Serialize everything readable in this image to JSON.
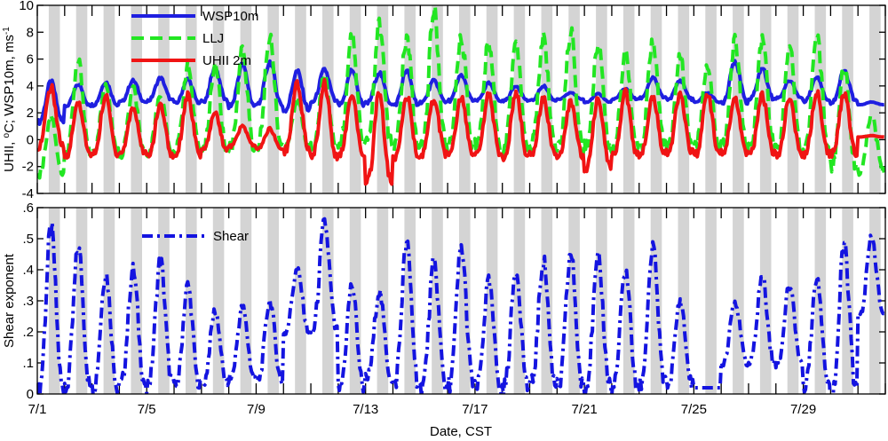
{
  "figure": {
    "xlabel": "Date, CST"
  },
  "chart_data": [
    {
      "type": "line",
      "panel": "top",
      "ylabel_parts": [
        "UHII, ",
        "o",
        "C; WSP10m, ms",
        "-1"
      ],
      "ylim": [
        -4,
        10
      ],
      "yticks": [
        -4,
        -2,
        0,
        2,
        4,
        6,
        8,
        10
      ],
      "ytick_labels": [
        "-4",
        "-2",
        "0",
        "2",
        "4",
        "6",
        "8",
        "10"
      ],
      "xlim_days": [
        0,
        31
      ],
      "legend_position": "top-left",
      "series": [
        {
          "name": "WSP10m",
          "color": "#1f1fe0",
          "style": "solid",
          "width": 4,
          "daily": [
            [
              0.3,
              1.3,
              4.3
            ],
            [
              1.3,
              2.5,
              4.1
            ],
            [
              2.3,
              2.6,
              4.3
            ],
            [
              3.3,
              2.8,
              4.4
            ],
            [
              4.3,
              2.9,
              4.6
            ],
            [
              5.3,
              2.7,
              4.5
            ],
            [
              6.3,
              2.8,
              5.3
            ],
            [
              7.3,
              2.5,
              5.6
            ],
            [
              8.3,
              2.6,
              5.8
            ],
            [
              9.3,
              2.2,
              5.1
            ],
            [
              10.3,
              2.8,
              5.2
            ],
            [
              11.3,
              2.6,
              5.2
            ],
            [
              12.3,
              2.7,
              5.0
            ],
            [
              13.3,
              2.6,
              5.1
            ],
            [
              14.3,
              2.8,
              4.4
            ],
            [
              15.3,
              2.9,
              4.8
            ],
            [
              16.3,
              2.9,
              4.2
            ],
            [
              17.3,
              2.9,
              4.0
            ],
            [
              18.3,
              2.9,
              4.0
            ],
            [
              19.3,
              3.0,
              3.5
            ],
            [
              20.3,
              2.8,
              3.4
            ],
            [
              21.3,
              3.0,
              3.8
            ],
            [
              22.3,
              3.1,
              4.6
            ],
            [
              23.3,
              3.0,
              4.4
            ],
            [
              24.3,
              2.8,
              3.5
            ],
            [
              25.3,
              2.8,
              5.9
            ],
            [
              26.3,
              3.0,
              5.3
            ],
            [
              27.3,
              3.1,
              4.4
            ],
            [
              28.3,
              2.9,
              4.7
            ],
            [
              29.3,
              2.8,
              5.1
            ],
            [
              30.3,
              2.6,
              2.8
            ]
          ]
        },
        {
          "name": "LLJ",
          "color": "#22e622",
          "style": "dashed",
          "width": 4,
          "daily": [
            [
              0.3,
              -2.6,
              1.8
            ],
            [
              1.3,
              -1.0,
              5.8
            ],
            [
              2.3,
              -0.9,
              4.0
            ],
            [
              3.3,
              -1.2,
              3.8
            ],
            [
              4.3,
              -1.0,
              3.4
            ],
            [
              5.3,
              -0.8,
              5.5
            ],
            [
              6.3,
              -0.9,
              5.6
            ],
            [
              7.3,
              -0.7,
              6.6
            ],
            [
              8.3,
              -0.5,
              7.7
            ],
            [
              9.3,
              -0.6,
              3.0
            ],
            [
              10.3,
              -0.5,
              4.8
            ],
            [
              11.3,
              -0.4,
              7.6
            ],
            [
              12.3,
              -0.3,
              8.5
            ],
            [
              13.3,
              -0.5,
              7.5
            ],
            [
              14.3,
              -0.6,
              9.6
            ],
            [
              15.3,
              -0.5,
              7.5
            ],
            [
              16.3,
              -0.4,
              7.2
            ],
            [
              17.3,
              -0.6,
              7.3
            ],
            [
              18.3,
              -0.5,
              7.5
            ],
            [
              19.3,
              -0.6,
              8.0
            ],
            [
              20.3,
              -0.5,
              7.2
            ],
            [
              21.3,
              -0.5,
              6.5
            ],
            [
              22.3,
              -0.6,
              7.4
            ],
            [
              23.3,
              -0.7,
              6.2
            ],
            [
              24.3,
              -0.5,
              5.5
            ],
            [
              25.3,
              -0.5,
              7.4
            ],
            [
              26.3,
              -0.5,
              7.5
            ],
            [
              27.3,
              -0.7,
              7.0
            ],
            [
              28.3,
              -0.6,
              7.5
            ],
            [
              29.3,
              -2.0,
              5.6
            ],
            [
              30.3,
              -2.4,
              1.8
            ]
          ]
        },
        {
          "name": "UHII 2m",
          "color": "#f01414",
          "style": "solid",
          "width": 4,
          "daily": [
            [
              0.3,
              -0.5,
              3.9
            ],
            [
              1.3,
              -1.2,
              2.8
            ],
            [
              2.3,
              -1.1,
              3.2
            ],
            [
              3.3,
              -1.0,
              2.4
            ],
            [
              4.3,
              -1.2,
              2.6
            ],
            [
              5.3,
              -1.1,
              3.3
            ],
            [
              6.3,
              -0.8,
              2.0
            ],
            [
              7.3,
              -0.5,
              1.0
            ],
            [
              8.3,
              -0.7,
              0.8
            ],
            [
              9.3,
              -0.8,
              4.2
            ],
            [
              10.3,
              -1.2,
              4.2
            ],
            [
              11.3,
              -1.1,
              3.2
            ],
            [
              12.3,
              -3.3,
              3.5
            ],
            [
              13.3,
              -1.3,
              3.3
            ],
            [
              14.3,
              -1.1,
              3.0
            ],
            [
              15.3,
              -1.0,
              3.1
            ],
            [
              16.3,
              -1.2,
              3.3
            ],
            [
              17.3,
              -1.3,
              3.4
            ],
            [
              18.3,
              -1.1,
              3.1
            ],
            [
              19.3,
              -1.2,
              2.8
            ],
            [
              20.3,
              -2.1,
              3.2
            ],
            [
              21.3,
              -1.2,
              3.5
            ],
            [
              22.3,
              -1.1,
              3.3
            ],
            [
              23.3,
              -1.0,
              3.5
            ],
            [
              24.3,
              -1.2,
              3.4
            ],
            [
              25.3,
              -1.0,
              3.1
            ],
            [
              26.3,
              -1.1,
              3.3
            ],
            [
              27.3,
              -1.2,
              3.2
            ],
            [
              28.3,
              -1.1,
              3.6
            ],
            [
              29.3,
              -1.0,
              3.4
            ],
            [
              30.3,
              0.2,
              0.3
            ]
          ]
        }
      ]
    },
    {
      "type": "line",
      "panel": "bottom",
      "ylabel": "Shear exponent",
      "ylim": [
        0,
        0.6
      ],
      "yticks": [
        0,
        0.1,
        0.2,
        0.3,
        0.4,
        0.5,
        0.6
      ],
      "ytick_labels": [
        "0",
        ".1",
        ".2",
        ".3",
        ".4",
        ".5",
        ".6"
      ],
      "xlim_days": [
        0,
        31
      ],
      "legend_position": "top-left",
      "xtick_labels": [
        "7/1",
        "7/5",
        "7/9",
        "7/13",
        "7/17",
        "7/21",
        "7/25",
        "7/29"
      ],
      "xtick_days": [
        0,
        4,
        8,
        12,
        16,
        20,
        24,
        28
      ],
      "series": [
        {
          "name": "Shear",
          "color": "#1414e0",
          "style": "dashdot",
          "width": 4,
          "daily": [
            [
              0.3,
              0.01,
              0.53
            ],
            [
              1.3,
              0.02,
              0.47
            ],
            [
              2.3,
              0.02,
              0.39
            ],
            [
              3.3,
              0.03,
              0.4
            ],
            [
              4.3,
              0.03,
              0.43
            ],
            [
              5.3,
              0.02,
              0.35
            ],
            [
              6.3,
              0.03,
              0.27
            ],
            [
              7.3,
              0.05,
              0.28
            ],
            [
              8.3,
              0.04,
              0.3
            ],
            [
              9.3,
              0.2,
              0.4
            ],
            [
              10.3,
              0.2,
              0.55
            ],
            [
              11.3,
              0.02,
              0.35
            ],
            [
              12.3,
              0.05,
              0.33
            ],
            [
              13.3,
              0.03,
              0.48
            ],
            [
              14.3,
              0.02,
              0.42
            ],
            [
              15.3,
              0.03,
              0.47
            ],
            [
              16.3,
              0.02,
              0.36
            ],
            [
              17.3,
              0.02,
              0.4
            ],
            [
              18.3,
              0.03,
              0.43
            ],
            [
              19.3,
              0.02,
              0.45
            ],
            [
              20.3,
              0.03,
              0.43
            ],
            [
              21.3,
              0.02,
              0.4
            ],
            [
              22.3,
              0.03,
              0.47
            ],
            [
              23.3,
              0.03,
              0.3
            ],
            [
              24.3,
              0.02,
              0.02
            ],
            [
              25.3,
              0.1,
              0.3
            ],
            [
              26.3,
              0.1,
              0.38
            ],
            [
              27.3,
              0.1,
              0.35
            ],
            [
              28.3,
              0.03,
              0.38
            ],
            [
              29.3,
              0.0,
              0.48
            ],
            [
              30.3,
              0.25,
              0.5
            ]
          ]
        }
      ]
    }
  ]
}
